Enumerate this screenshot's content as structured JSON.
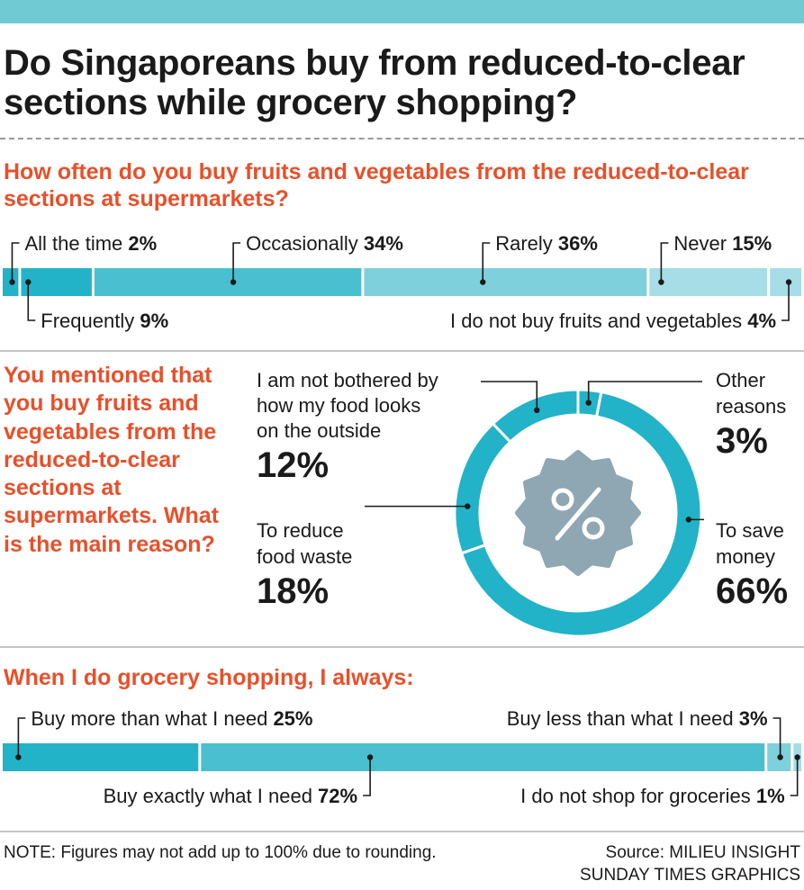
{
  "title": "Do Singaporeans buy from reduced-to-clear sections while grocery shopping?",
  "colors": {
    "dark": "#22b3c8",
    "mid": "#49bfcf",
    "light": "#7ed0dc",
    "lighter": "#a6dde6",
    "question": "#e8502a",
    "topbar": "#6fcad3",
    "badge": "#8fa7b2"
  },
  "chart_data": [
    {
      "type": "bar",
      "orientation": "horizontal-stacked",
      "title": "How often do you buy fruits and vegetables from the reduced-to-clear sections at supermarkets?",
      "categories": [
        "All the time",
        "Frequently",
        "Occasionally",
        "Rarely",
        "Never",
        "I do not buy fruits and vegetables"
      ],
      "values": [
        2,
        9,
        34,
        36,
        15,
        4
      ],
      "value_labels": [
        "2%",
        "9%",
        "34%",
        "36%",
        "15%",
        "4%"
      ]
    },
    {
      "type": "pie",
      "style": "donut",
      "title": "You mentioned that you buy fruits and vegetables from the reduced-to-clear sections at supermarkets. What is the main reason?",
      "categories": [
        "I am not bothered by how my food looks on the outside",
        "Other reasons",
        "To save money",
        "To reduce food waste"
      ],
      "values": [
        12,
        3,
        66,
        18
      ],
      "value_labels": [
        "12%",
        "3%",
        "66%",
        "18%"
      ],
      "center_icon": "percent-badge-icon"
    },
    {
      "type": "bar",
      "orientation": "horizontal-stacked",
      "title": "When I do grocery shopping, I always:",
      "categories": [
        "Buy more than what I need",
        "Buy exactly what I need",
        "Buy less than what I need",
        "I do not shop for groceries"
      ],
      "values": [
        25,
        72,
        3,
        1
      ],
      "value_labels": [
        "25%",
        "72%",
        "3%",
        "1%"
      ]
    }
  ],
  "footer": {
    "note": "NOTE: Figures may not add up to 100% due to rounding.",
    "source": "Source: MILIEU INSIGHT",
    "credit": "SUNDAY TIMES GRAPHICS"
  }
}
